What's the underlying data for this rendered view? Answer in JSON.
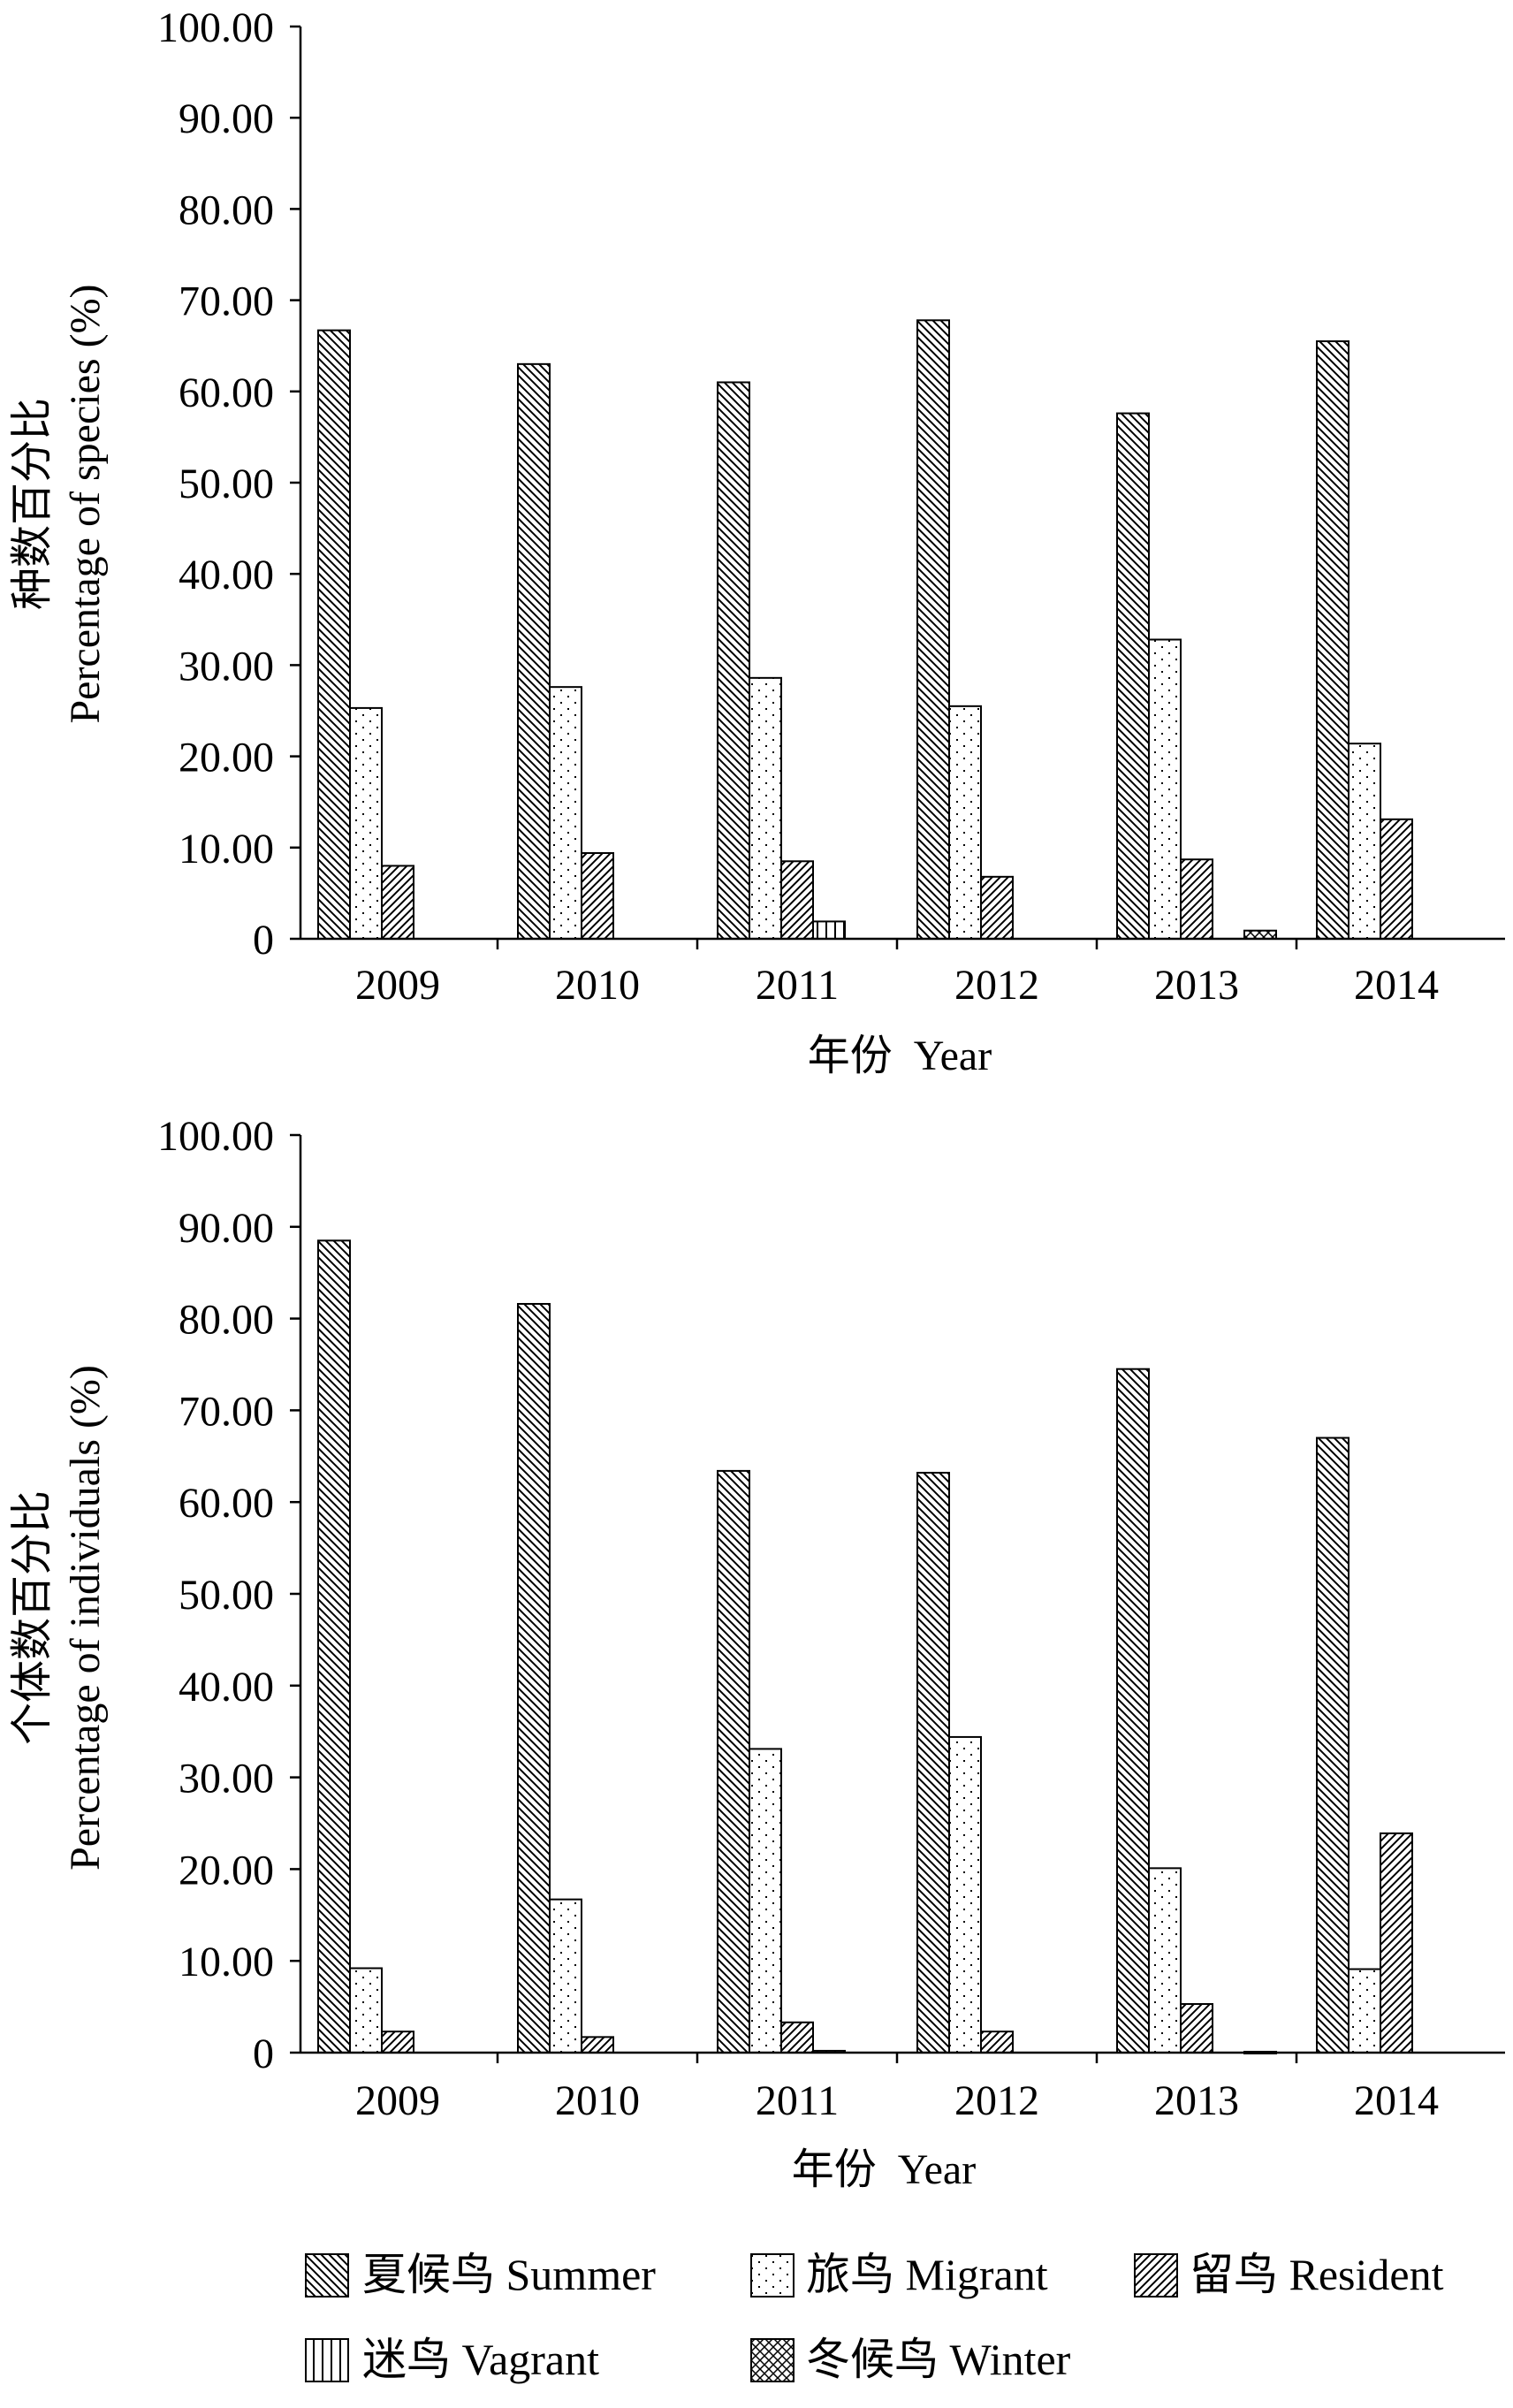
{
  "chart_data": [
    {
      "type": "bar",
      "xlabel": "年份  Year",
      "ylabel": "种数百分比",
      "ylabel2": "Percentage of species (%)",
      "ylim": [
        0,
        100
      ],
      "yticks": [
        "0",
        "10.00",
        "20.00",
        "30.00",
        "40.00",
        "50.00",
        "60.00",
        "70.00",
        "80.00",
        "90.00",
        "100.00"
      ],
      "categories": [
        "2009",
        "2010",
        "2011",
        "2012",
        "2013",
        "2014"
      ],
      "series": [
        {
          "name": "夏候鸟 Summer",
          "pattern": "summer",
          "values": [
            66.7,
            63.0,
            61.0,
            67.8,
            57.6,
            65.5
          ]
        },
        {
          "name": "旅鸟 Migrant",
          "pattern": "migrant",
          "values": [
            25.3,
            27.6,
            28.6,
            25.5,
            32.8,
            21.4
          ]
        },
        {
          "name": "留鸟 Resident",
          "pattern": "resident",
          "values": [
            8.0,
            9.4,
            8.5,
            6.8,
            8.7,
            13.1
          ]
        },
        {
          "name": "迷鸟 Vagrant",
          "pattern": "vagrant",
          "values": [
            0,
            0,
            1.9,
            0,
            0,
            0
          ]
        },
        {
          "name": "冬候鸟 Winter",
          "pattern": "winter",
          "values": [
            0,
            0,
            0,
            0,
            0.9,
            0
          ]
        }
      ]
    },
    {
      "type": "bar",
      "xlabel": "年份  Year",
      "ylabel": "个体数百分比",
      "ylabel2": "Percentage of individuals (%)",
      "ylim": [
        0,
        100
      ],
      "yticks": [
        "0",
        "10.00",
        "20.00",
        "30.00",
        "40.00",
        "50.00",
        "60.00",
        "70.00",
        "80.00",
        "90.00",
        "100.00"
      ],
      "categories": [
        "2009",
        "2010",
        "2011",
        "2012",
        "2013",
        "2014"
      ],
      "series": [
        {
          "name": "夏候鸟 Summer",
          "pattern": "summer",
          "values": [
            88.5,
            81.6,
            63.4,
            63.2,
            74.5,
            67.0
          ]
        },
        {
          "name": "旅鸟 Migrant",
          "pattern": "migrant",
          "values": [
            9.2,
            16.7,
            33.1,
            34.4,
            20.1,
            9.1
          ]
        },
        {
          "name": "留鸟 Resident",
          "pattern": "resident",
          "values": [
            2.3,
            1.7,
            3.3,
            2.3,
            5.3,
            23.9
          ]
        },
        {
          "name": "迷鸟 Vagrant",
          "pattern": "vagrant",
          "values": [
            0,
            0,
            0.2,
            0,
            0,
            0
          ]
        },
        {
          "name": "冬候鸟 Winter",
          "pattern": "winter",
          "values": [
            0,
            0,
            0,
            0,
            0.1,
            0
          ]
        }
      ]
    }
  ],
  "legend": [
    {
      "label": "夏候鸟 Summer",
      "pattern": "summer"
    },
    {
      "label": "旅鸟 Migrant",
      "pattern": "migrant"
    },
    {
      "label": "留鸟 Resident",
      "pattern": "resident"
    },
    {
      "label": "迷鸟 Vagrant",
      "pattern": "vagrant"
    },
    {
      "label": "冬候鸟 Winter",
      "pattern": "winter"
    }
  ]
}
